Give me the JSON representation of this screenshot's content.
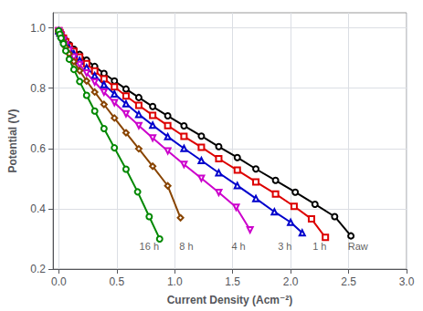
{
  "chart_data": {
    "type": "line",
    "xlabel": "Current Density (Acm⁻²)",
    "ylabel": "Potential (V)",
    "xlim": [
      -0.05,
      3.0
    ],
    "ylim": [
      0.2,
      1.05
    ],
    "xticks": [
      {
        "value": 0.0,
        "label": "0.0"
      },
      0.5,
      {
        "value": 1.0,
        "label": "1.0"
      },
      1.5,
      {
        "value": 2.0,
        "label": "2.0"
      },
      2.5,
      {
        "value": 3.0,
        "label": "3.0"
      }
    ],
    "yticks": [
      0.2,
      0.4,
      0.6,
      0.8,
      {
        "value": 1.0,
        "label": "1.0"
      }
    ],
    "grid": true,
    "series": [
      {
        "color": "black",
        "marker": "circle",
        "x": [
          0.0,
          0.01,
          0.02,
          0.04,
          0.06,
          0.09,
          0.13,
          0.18,
          0.24,
          0.31,
          0.39,
          0.48,
          0.58,
          0.69,
          0.81,
          0.94,
          1.08,
          1.23,
          1.38,
          1.54,
          1.7,
          1.87,
          2.04,
          2.21,
          2.38,
          2.52
        ],
        "values": [
          0.99,
          0.985,
          0.978,
          0.968,
          0.957,
          0.944,
          0.929,
          0.912,
          0.893,
          0.872,
          0.849,
          0.824,
          0.797,
          0.769,
          0.739,
          0.708,
          0.675,
          0.641,
          0.606,
          0.57,
          0.532,
          0.494,
          0.455,
          0.415,
          0.374,
          0.31
        ]
      },
      {
        "color": "#dd0000",
        "marker": "square",
        "x": [
          0.0,
          0.01,
          0.02,
          0.04,
          0.06,
          0.09,
          0.13,
          0.18,
          0.24,
          0.31,
          0.39,
          0.48,
          0.58,
          0.69,
          0.81,
          0.94,
          1.08,
          1.23,
          1.38,
          1.54,
          1.7,
          1.87,
          2.03,
          2.18,
          2.3
        ],
        "values": [
          0.99,
          0.984,
          0.977,
          0.966,
          0.954,
          0.939,
          0.922,
          0.903,
          0.881,
          0.857,
          0.831,
          0.804,
          0.774,
          0.743,
          0.71,
          0.676,
          0.64,
          0.604,
          0.566,
          0.528,
          0.489,
          0.449,
          0.408,
          0.366,
          0.305
        ]
      },
      {
        "color": "#0000cc",
        "marker": "triangle",
        "x": [
          0.0,
          0.01,
          0.02,
          0.04,
          0.06,
          0.09,
          0.13,
          0.18,
          0.24,
          0.31,
          0.39,
          0.48,
          0.58,
          0.69,
          0.81,
          0.94,
          1.08,
          1.23,
          1.38,
          1.54,
          1.7,
          1.86,
          2.0,
          2.1
        ],
        "values": [
          0.99,
          0.983,
          0.975,
          0.963,
          0.949,
          0.933,
          0.914,
          0.892,
          0.868,
          0.841,
          0.812,
          0.781,
          0.748,
          0.713,
          0.677,
          0.639,
          0.6,
          0.56,
          0.519,
          0.477,
          0.434,
          0.39,
          0.355,
          0.32
        ]
      },
      {
        "color": "#cc00cc",
        "marker": "triangle_down",
        "x": [
          0.0,
          0.01,
          0.02,
          0.04,
          0.06,
          0.09,
          0.13,
          0.18,
          0.24,
          0.31,
          0.39,
          0.48,
          0.58,
          0.69,
          0.81,
          0.94,
          1.08,
          1.23,
          1.38,
          1.53,
          1.65
        ],
        "values": [
          0.99,
          0.982,
          0.973,
          0.96,
          0.944,
          0.925,
          0.903,
          0.878,
          0.85,
          0.82,
          0.787,
          0.752,
          0.715,
          0.676,
          0.635,
          0.592,
          0.547,
          0.501,
          0.454,
          0.405,
          0.33
        ]
      },
      {
        "color": "#884400",
        "marker": "diamond",
        "x": [
          0.0,
          0.01,
          0.02,
          0.04,
          0.06,
          0.09,
          0.13,
          0.18,
          0.24,
          0.31,
          0.39,
          0.48,
          0.58,
          0.69,
          0.81,
          0.94,
          1.05
        ],
        "values": [
          0.99,
          0.981,
          0.97,
          0.954,
          0.936,
          0.914,
          0.888,
          0.858,
          0.824,
          0.787,
          0.746,
          0.701,
          0.652,
          0.599,
          0.541,
          0.476,
          0.37
        ]
      },
      {
        "color": "#008800",
        "marker": "circle",
        "x": [
          0.0,
          0.01,
          0.02,
          0.04,
          0.06,
          0.09,
          0.13,
          0.18,
          0.24,
          0.31,
          0.39,
          0.48,
          0.58,
          0.68,
          0.78,
          0.87
        ],
        "values": [
          0.99,
          0.979,
          0.966,
          0.947,
          0.924,
          0.896,
          0.862,
          0.822,
          0.776,
          0.724,
          0.666,
          0.602,
          0.531,
          0.456,
          0.374,
          0.3
        ]
      }
    ],
    "annotations": [
      {
        "text": "16 h",
        "x": 0.78,
        "y": 0.255
      },
      {
        "text": "8 h",
        "x": 1.1,
        "y": 0.255
      },
      {
        "text": "4 h",
        "x": 1.55,
        "y": 0.255
      },
      {
        "text": "3 h",
        "x": 1.95,
        "y": 0.255
      },
      {
        "text": "1 h",
        "x": 2.25,
        "y": 0.255
      },
      {
        "text": "Raw",
        "x": 2.58,
        "y": 0.255
      }
    ]
  }
}
